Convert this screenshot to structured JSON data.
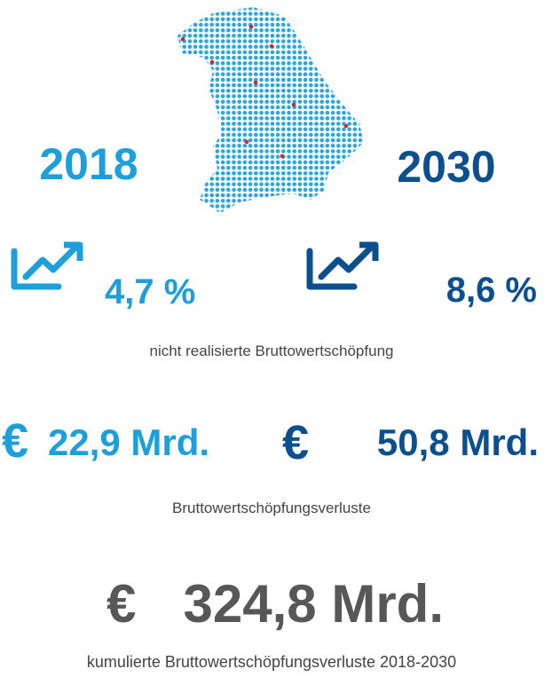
{
  "left": {
    "year": "2018",
    "percent": "4,7 %",
    "currency": "€",
    "amount": "22,9 Mrd."
  },
  "right": {
    "year": "2030",
    "percent": "8,6 %",
    "currency": "€",
    "amount": "50,8 Mrd."
  },
  "percent_caption": "nicht realisierte Bruttowertschöpfung",
  "loss_caption": "Bruttowertschöpfungsverluste",
  "total": {
    "currency": "€",
    "amount": "324,8 Mrd."
  },
  "total_caption": "kumulierte Bruttowertschöpfungsverluste 2018-2030"
}
